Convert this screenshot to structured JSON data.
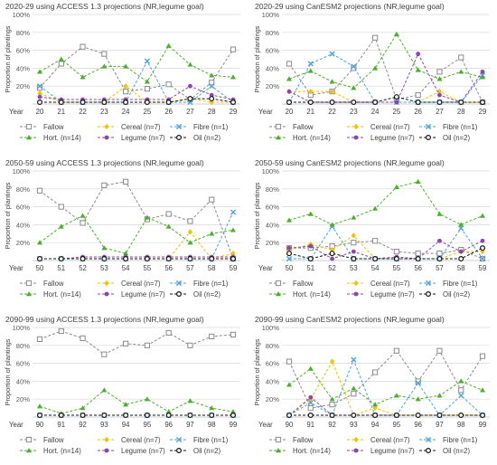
{
  "figure": {
    "y_ticks": [
      "",
      "20%",
      "40%",
      "60%",
      "80%",
      "100%"
    ],
    "ylabel": "Proportion of plantings",
    "xlabel": "Year",
    "series_styles": [
      {
        "name": "Fallow",
        "color": "#8a8a8a",
        "marker": "square-open"
      },
      {
        "name": "Cereal",
        "color": "#f2c200",
        "marker": "diamond"
      },
      {
        "name": "Fibre",
        "color": "#4aa3df",
        "marker": "x"
      },
      {
        "name": "Hort.",
        "color": "#4caf2b",
        "marker": "triangle"
      },
      {
        "name": "Legume",
        "color": "#8e44ad",
        "marker": "circle"
      },
      {
        "name": "Oil",
        "color": "#111111",
        "marker": "circle-open"
      }
    ]
  },
  "chart_data": [
    {
      "type": "line",
      "title": "2020-29 using ACCESS 1.3 projections (NR,legume goal)",
      "xlabel": "Year",
      "ylabel": "Proportion of plantings",
      "categories": [
        "20",
        "21",
        "22",
        "23",
        "24",
        "25",
        "26",
        "27",
        "28",
        "29"
      ],
      "ylim": [
        0,
        100
      ],
      "grid": true,
      "legend": "bottom",
      "series": [
        {
          "name": "Fallow",
          "label": "Fallow",
          "values": [
            18,
            45,
            64,
            56,
            14,
            17,
            22,
            5,
            24,
            61
          ]
        },
        {
          "name": "Cereal",
          "label": "Cereal (n=7)",
          "values": [
            12,
            2,
            2,
            2,
            20,
            2,
            2,
            6,
            2,
            2
          ]
        },
        {
          "name": "Fibre",
          "label": "Fibre (n=1)",
          "values": [
            20,
            2,
            2,
            2,
            2,
            48,
            2,
            2,
            20,
            2
          ]
        },
        {
          "name": "Hort.",
          "label": "Hort. (n=14)",
          "values": [
            36,
            50,
            30,
            42,
            42,
            25,
            65,
            44,
            32,
            30
          ]
        },
        {
          "name": "Legume",
          "label": "Legume (n=7)",
          "values": [
            8,
            5,
            5,
            5,
            5,
            5,
            5,
            20,
            10,
            5
          ]
        },
        {
          "name": "Oil",
          "label": "Oil (n=2)",
          "values": [
            2,
            2,
            2,
            2,
            2,
            2,
            2,
            6,
            6,
            2
          ]
        }
      ]
    },
    {
      "type": "line",
      "title": "2020-29 using CanESM2 projections (NR,legume goal)",
      "xlabel": "Year",
      "ylabel": "Proportion of plantings",
      "categories": [
        "20",
        "21",
        "22",
        "23",
        "24",
        "25",
        "26",
        "27",
        "28",
        "29"
      ],
      "ylim": [
        0,
        100
      ],
      "grid": true,
      "legend": "bottom",
      "series": [
        {
          "name": "Fallow",
          "label": "Fallow",
          "values": [
            45,
            10,
            14,
            40,
            74,
            5,
            10,
            36,
            52,
            2
          ]
        },
        {
          "name": "Cereal",
          "label": "Cereal (n=7)",
          "values": [
            14,
            14,
            14,
            2,
            2,
            2,
            2,
            14,
            2,
            2
          ]
        },
        {
          "name": "Fibre",
          "label": "Fibre (n=1)",
          "values": [
            2,
            45,
            56,
            42,
            2,
            2,
            2,
            2,
            2,
            32
          ]
        },
        {
          "name": "Hort.",
          "label": "Hort. (n=14)",
          "values": [
            28,
            37,
            25,
            18,
            40,
            78,
            38,
            28,
            36,
            30
          ]
        },
        {
          "name": "Legume",
          "label": "Legume (n=7)",
          "values": [
            14,
            2,
            2,
            2,
            2,
            2,
            56,
            10,
            2,
            36
          ]
        },
        {
          "name": "Oil",
          "label": "Oil (n=2)",
          "values": [
            2,
            2,
            2,
            2,
            2,
            8,
            2,
            2,
            2,
            2
          ]
        }
      ]
    },
    {
      "type": "line",
      "title": "2050-59 using ACCESS 1.3 projections (NR,legume goal)",
      "xlabel": "Year",
      "ylabel": "Proportion of plantings",
      "categories": [
        "50",
        "51",
        "52",
        "53",
        "54",
        "55",
        "56",
        "57",
        "58",
        "59"
      ],
      "ylim": [
        0,
        100
      ],
      "grid": true,
      "legend": "bottom",
      "series": [
        {
          "name": "Fallow",
          "label": "Fallow",
          "values": [
            78,
            60,
            42,
            84,
            88,
            46,
            52,
            44,
            68,
            2
          ]
        },
        {
          "name": "Cereal",
          "label": "Cereal (n=7)",
          "values": [
            2,
            2,
            2,
            2,
            2,
            2,
            2,
            32,
            2,
            8
          ]
        },
        {
          "name": "Fibre",
          "label": "Fibre (n=1)",
          "values": [
            2,
            2,
            2,
            2,
            2,
            2,
            2,
            2,
            2,
            54
          ]
        },
        {
          "name": "Hort.",
          "label": "Hort. (n=14)",
          "values": [
            20,
            38,
            50,
            14,
            8,
            48,
            38,
            20,
            30,
            34
          ]
        },
        {
          "name": "Legume",
          "label": "Legume (n=7)",
          "values": [
            2,
            2,
            4,
            4,
            4,
            4,
            4,
            4,
            4,
            4
          ]
        },
        {
          "name": "Oil",
          "label": "Oil (n=2)",
          "values": [
            2,
            2,
            2,
            2,
            2,
            2,
            2,
            2,
            2,
            2
          ]
        }
      ]
    },
    {
      "type": "line",
      "title": "2050-59 using CanESM2 projections (NR,legume goal)",
      "xlabel": "Year",
      "ylabel": "Proportion of plantings",
      "categories": [
        "50",
        "51",
        "52",
        "53",
        "54",
        "55",
        "56",
        "57",
        "58",
        "59"
      ],
      "ylim": [
        0,
        100
      ],
      "grid": true,
      "legend": "bottom",
      "series": [
        {
          "name": "Fallow",
          "label": "Fallow",
          "values": [
            14,
            14,
            16,
            20,
            22,
            10,
            8,
            8,
            12,
            2
          ]
        },
        {
          "name": "Cereal",
          "label": "Cereal (n=7)",
          "values": [
            12,
            18,
            12,
            28,
            2,
            2,
            2,
            2,
            10,
            10
          ]
        },
        {
          "name": "Fibre",
          "label": "Fibre (n=1)",
          "values": [
            2,
            2,
            38,
            2,
            2,
            2,
            2,
            2,
            36,
            2
          ]
        },
        {
          "name": "Hort.",
          "label": "Hort. (n=14)",
          "values": [
            45,
            52,
            40,
            48,
            58,
            82,
            88,
            52,
            40,
            50
          ]
        },
        {
          "name": "Legume",
          "label": "Legume (n=7)",
          "values": [
            14,
            16,
            2,
            10,
            2,
            4,
            2,
            22,
            10,
            22
          ]
        },
        {
          "name": "Oil",
          "label": "Oil (n=2)",
          "values": [
            8,
            2,
            8,
            2,
            2,
            2,
            2,
            2,
            2,
            14
          ]
        }
      ]
    },
    {
      "type": "line",
      "title": "2090-99 using ACCESS 1.3 projections (NR,legume goal)",
      "xlabel": "Year",
      "ylabel": "Proportion of plantings",
      "categories": [
        "90",
        "91",
        "92",
        "93",
        "94",
        "95",
        "96",
        "97",
        "98",
        "99"
      ],
      "ylim": [
        0,
        100
      ],
      "grid": true,
      "legend": "bottom",
      "series": [
        {
          "name": "Fallow",
          "label": "Fallow",
          "values": [
            87,
            96,
            88,
            70,
            82,
            80,
            94,
            80,
            90,
            92
          ]
        },
        {
          "name": "Cereal",
          "label": "Cereal (n=7)",
          "values": [
            2,
            2,
            2,
            2,
            2,
            2,
            2,
            2,
            2,
            2
          ]
        },
        {
          "name": "Fibre",
          "label": "Fibre (n=1)",
          "values": [
            2,
            2,
            2,
            2,
            2,
            2,
            2,
            2,
            2,
            2
          ]
        },
        {
          "name": "Hort.",
          "label": "Hort. (n=14)",
          "values": [
            12,
            4,
            10,
            30,
            14,
            20,
            6,
            18,
            10,
            6
          ]
        },
        {
          "name": "Legume",
          "label": "Legume (n=7)",
          "values": [
            2,
            2,
            2,
            2,
            2,
            2,
            2,
            2,
            2,
            2
          ]
        },
        {
          "name": "Oil",
          "label": "Oil (n=2)",
          "values": [
            2,
            2,
            2,
            2,
            2,
            2,
            2,
            2,
            2,
            2
          ]
        }
      ]
    },
    {
      "type": "line",
      "title": "2090-99 using CanESM2 projections (NR,legume goal)",
      "xlabel": "Year",
      "ylabel": "Proportion of plantings",
      "categories": [
        "90",
        "91",
        "92",
        "93",
        "94",
        "95",
        "96",
        "97",
        "98",
        "99"
      ],
      "ylim": [
        0,
        100
      ],
      "grid": true,
      "legend": "bottom",
      "series": [
        {
          "name": "Fallow",
          "label": "Fallow",
          "values": [
            62,
            10,
            14,
            26,
            50,
            74,
            40,
            74,
            30,
            68
          ]
        },
        {
          "name": "Cereal",
          "label": "Cereal (n=7)",
          "values": [
            2,
            20,
            62,
            2,
            10,
            2,
            2,
            2,
            2,
            2
          ]
        },
        {
          "name": "Fibre",
          "label": "Fibre (n=1)",
          "values": [
            2,
            16,
            2,
            64,
            2,
            2,
            38,
            2,
            24,
            2
          ]
        },
        {
          "name": "Hort.",
          "label": "Hort. (n=14)",
          "values": [
            36,
            54,
            20,
            32,
            14,
            24,
            20,
            24,
            40,
            30
          ]
        },
        {
          "name": "Legume",
          "label": "Legume (n=7)",
          "values": [
            2,
            22,
            2,
            2,
            2,
            2,
            2,
            2,
            2,
            2
          ]
        },
        {
          "name": "Oil",
          "label": "Oil (n=2)",
          "values": [
            2,
            2,
            2,
            2,
            2,
            2,
            2,
            2,
            2,
            2
          ]
        }
      ]
    }
  ]
}
